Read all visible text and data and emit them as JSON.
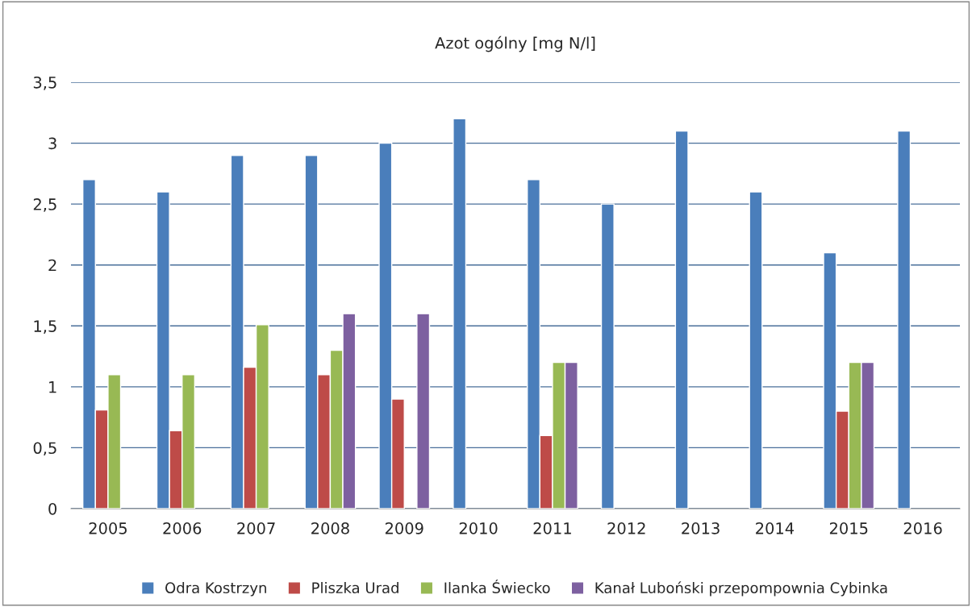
{
  "chart_data": {
    "type": "bar",
    "title": "Azot ogólny [mg N/l]",
    "categories": [
      "2005",
      "2006",
      "2007",
      "2008",
      "2009",
      "2010",
      "2011",
      "2012",
      "2013",
      "2014",
      "2015",
      "2016"
    ],
    "series": [
      {
        "name": "Odra Kostrzyn",
        "color": "#4a7ebb",
        "values": [
          2.7,
          2.6,
          2.9,
          2.9,
          3.0,
          3.2,
          2.7,
          2.5,
          3.1,
          2.6,
          2.1,
          3.1
        ]
      },
      {
        "name": "Pliszka Urad",
        "color": "#be4b48",
        "values": [
          0.81,
          0.64,
          1.16,
          1.1,
          0.9,
          null,
          0.6,
          null,
          null,
          null,
          0.8,
          null
        ]
      },
      {
        "name": "Ilanka Świecko",
        "color": "#98b954",
        "values": [
          1.1,
          1.1,
          1.51,
          1.3,
          null,
          null,
          1.2,
          null,
          null,
          null,
          1.2,
          null
        ]
      },
      {
        "name": "Kanał Luboński przepompownia Cybinka",
        "color": "#7d60a0",
        "values": [
          null,
          null,
          null,
          1.6,
          1.6,
          null,
          1.2,
          null,
          null,
          null,
          1.2,
          null
        ]
      }
    ],
    "ylim": [
      0,
      3.5
    ],
    "yticks": [
      0,
      {
        "value": 0.5,
        "label": "0,5"
      },
      1,
      {
        "value": 1.5,
        "label": "1,5"
      },
      2,
      {
        "value": 2.5,
        "label": "2,5"
      },
      3,
      {
        "value": 3.5,
        "label": "3,5"
      }
    ],
    "grid": "y",
    "legend": "bottom"
  }
}
